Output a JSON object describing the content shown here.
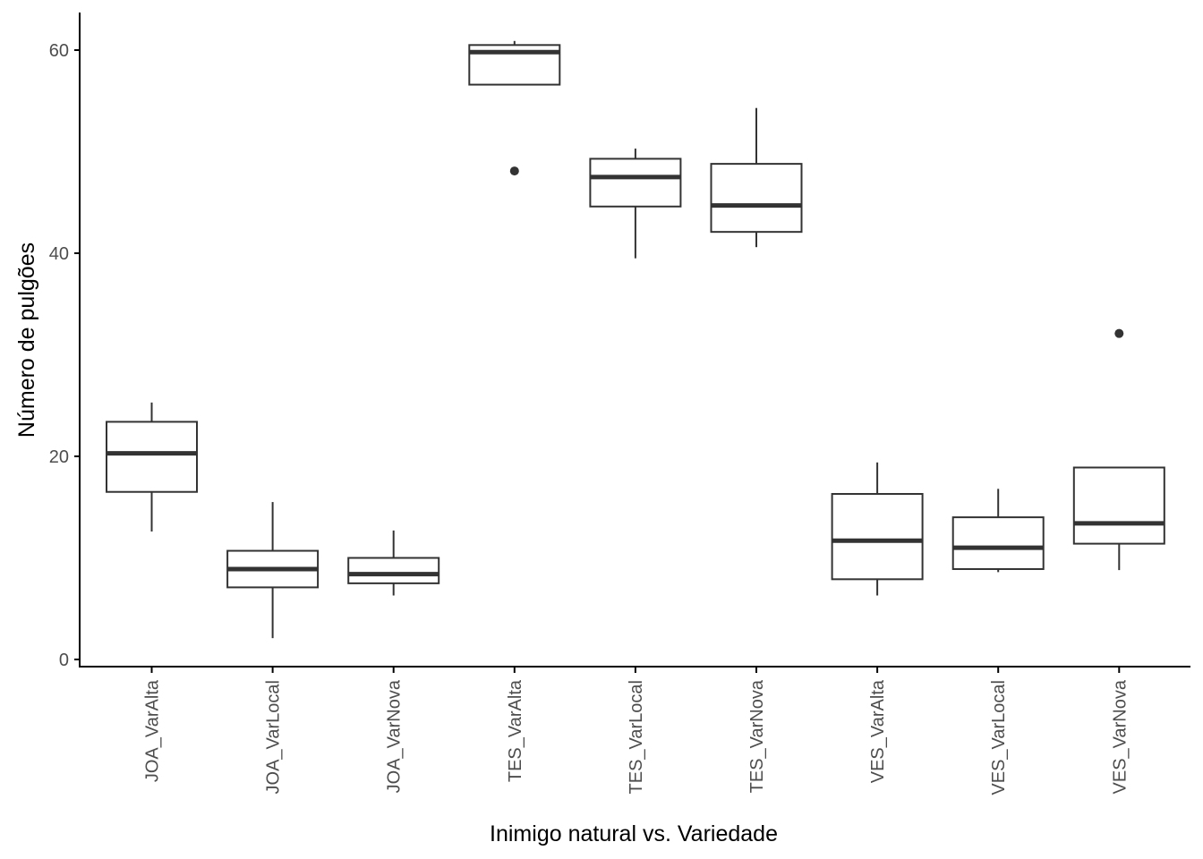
{
  "chart_data": {
    "type": "boxplot",
    "title": "",
    "xlabel": "Inimigo natural vs. Variedade",
    "ylabel": "Número de pulgões",
    "ylim": [
      -0.6,
      63.8
    ],
    "yticks": [
      0,
      20,
      40,
      60
    ],
    "ytick_labels": [
      "0",
      "20",
      "40",
      "60"
    ],
    "x_tick_rotation": "vertical",
    "grid": false,
    "legend": "none",
    "colors": {
      "box_stroke": "#333333",
      "median": "#333333",
      "axis": "#000000",
      "tick_text": "#4d4d4d"
    },
    "categories": [
      "JOA_VarAlta",
      "JOA_VarLocal",
      "JOA_VarNova",
      "TES_VarAlta",
      "TES_VarLocal",
      "TES_VarNova",
      "VES_VarAlta",
      "VES_VarLocal",
      "VES_VarNova"
    ],
    "boxes": [
      {
        "category": "JOA_VarAlta",
        "lower_whisker": 12.6,
        "q1": 16.5,
        "median": 20.3,
        "q3": 23.4,
        "upper_whisker": 25.3,
        "outliers": []
      },
      {
        "category": "JOA_VarLocal",
        "lower_whisker": 2.1,
        "q1": 7.1,
        "median": 8.9,
        "q3": 10.7,
        "upper_whisker": 15.5,
        "outliers": []
      },
      {
        "category": "JOA_VarNova",
        "lower_whisker": 6.3,
        "q1": 7.5,
        "median": 8.4,
        "q3": 10.0,
        "upper_whisker": 12.7,
        "outliers": []
      },
      {
        "category": "TES_VarAlta",
        "lower_whisker": 56.6,
        "q1": 56.6,
        "median": 59.8,
        "q3": 60.5,
        "upper_whisker": 60.9,
        "outliers": [
          48.1
        ]
      },
      {
        "category": "TES_VarLocal",
        "lower_whisker": 39.5,
        "q1": 44.6,
        "median": 47.5,
        "q3": 49.3,
        "upper_whisker": 50.3,
        "outliers": []
      },
      {
        "category": "TES_VarNova",
        "lower_whisker": 40.6,
        "q1": 42.1,
        "median": 44.7,
        "q3": 48.8,
        "upper_whisker": 54.3,
        "outliers": []
      },
      {
        "category": "VES_VarAlta",
        "lower_whisker": 6.3,
        "q1": 7.9,
        "median": 11.7,
        "q3": 16.3,
        "upper_whisker": 19.4,
        "outliers": []
      },
      {
        "category": "VES_VarLocal",
        "lower_whisker": 8.6,
        "q1": 8.9,
        "median": 11.0,
        "q3": 14.0,
        "upper_whisker": 16.8,
        "outliers": []
      },
      {
        "category": "VES_VarNova",
        "lower_whisker": 8.8,
        "q1": 11.4,
        "median": 13.4,
        "q3": 18.9,
        "upper_whisker": 18.9,
        "outliers": [
          32.1
        ]
      }
    ]
  }
}
